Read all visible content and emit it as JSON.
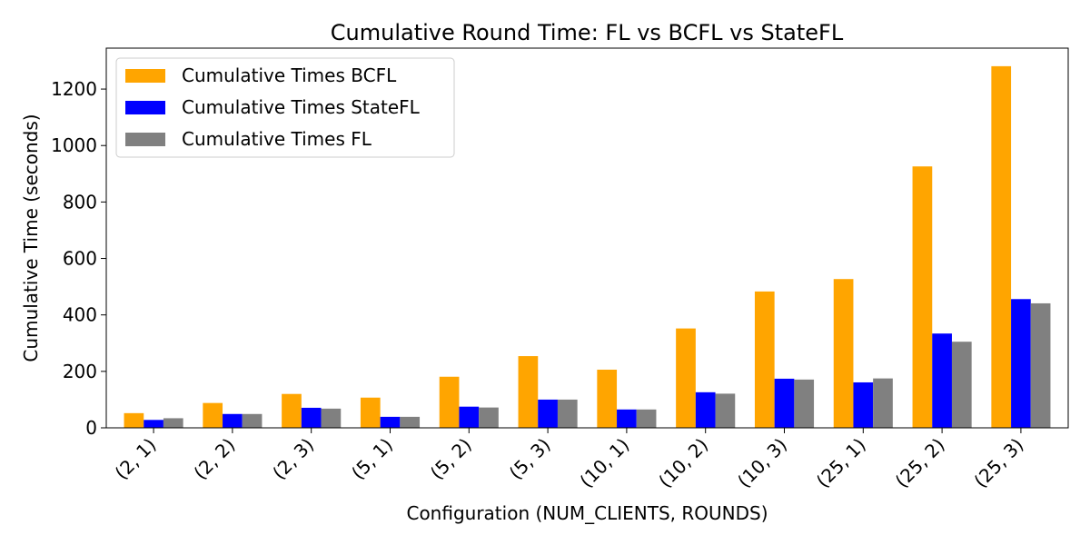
{
  "chart_data": {
    "type": "bar",
    "title": "Cumulative Round Time: FL vs BCFL vs StateFL",
    "xlabel": "Configuration (NUM_CLIENTS, ROUNDS)",
    "ylabel": "Cumulative Time (seconds)",
    "categories": [
      "(2, 1)",
      "(2, 2)",
      "(2, 3)",
      "(5, 1)",
      "(5, 2)",
      "(5, 3)",
      "(10, 1)",
      "(10, 2)",
      "(10, 3)",
      "(25, 1)",
      "(25, 2)",
      "(25, 3)"
    ],
    "series": [
      {
        "name": "Cumulative Times BCFL",
        "color": "#ffa500",
        "values": [
          52,
          88,
          120,
          107,
          181,
          254,
          206,
          352,
          483,
          527,
          926,
          1281
        ]
      },
      {
        "name": "Cumulative Times StateFL",
        "color": "#0000ff",
        "values": [
          28,
          49,
          71,
          39,
          75,
          100,
          65,
          126,
          174,
          161,
          334,
          456
        ]
      },
      {
        "name": "Cumulative Times FL",
        "color": "#808080",
        "values": [
          34,
          49,
          68,
          39,
          72,
          100,
          65,
          121,
          171,
          175,
          305,
          441
        ]
      }
    ],
    "ylim": [
      0,
      1345
    ],
    "yticks": [
      0,
      200,
      400,
      600,
      800,
      1000,
      1200
    ],
    "legend_position": "top-left",
    "grid": false
  }
}
